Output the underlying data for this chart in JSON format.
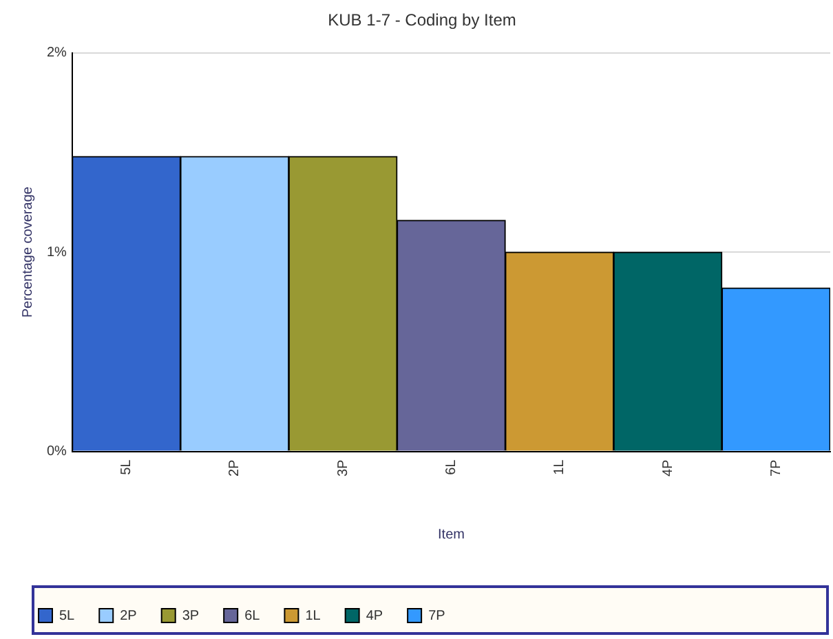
{
  "chart_data": {
    "type": "bar",
    "title": "KUB 1-7 - Coding by Item",
    "xlabel": "Item",
    "ylabel": "Percentage coverage",
    "categories": [
      "5L",
      "2P",
      "3P",
      "6L",
      "1L",
      "4P",
      "7P"
    ],
    "series": [
      {
        "name": "5L",
        "color": "#3366cc",
        "values": [
          1.48,
          null,
          null,
          null,
          null,
          null,
          null
        ]
      },
      {
        "name": "2P",
        "color": "#99ccff",
        "values": [
          null,
          1.48,
          null,
          null,
          null,
          null,
          null
        ]
      },
      {
        "name": "3P",
        "color": "#999933",
        "values": [
          null,
          null,
          1.48,
          null,
          null,
          null,
          null
        ]
      },
      {
        "name": "6L",
        "color": "#666699",
        "values": [
          null,
          null,
          null,
          1.16,
          null,
          null,
          null
        ]
      },
      {
        "name": "1L",
        "color": "#cc9933",
        "values": [
          null,
          null,
          null,
          null,
          1.0,
          null,
          null
        ]
      },
      {
        "name": "4P",
        "color": "#006666",
        "values": [
          null,
          null,
          null,
          null,
          null,
          1.0,
          null
        ]
      },
      {
        "name": "7P",
        "color": "#3399ff",
        "values": [
          null,
          null,
          null,
          null,
          null,
          null,
          0.82
        ]
      }
    ],
    "stacked": true,
    "ylim": [
      0,
      2
    ],
    "yticks": [
      {
        "value": 0,
        "label": "0%"
      },
      {
        "value": 1,
        "label": "1%"
      },
      {
        "value": 2,
        "label": "2%"
      }
    ],
    "grid": "y",
    "legend": "bottom"
  }
}
